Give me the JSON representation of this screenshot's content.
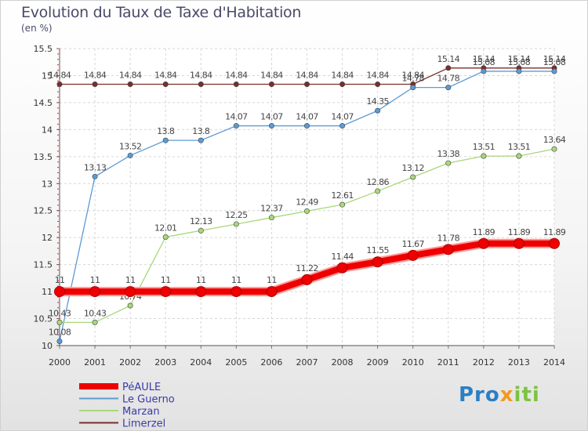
{
  "chart_data": {
    "type": "line",
    "title": "Evolution du Taux de Taxe d'Habitation",
    "unit_label": "(en %)",
    "x": [
      "2000",
      "2001",
      "2002",
      "2003",
      "2004",
      "2005",
      "2006",
      "2007",
      "2008",
      "2009",
      "2010",
      "2011",
      "2012",
      "2013",
      "2014"
    ],
    "ylim": [
      10,
      15.5
    ],
    "yticks": [
      "10",
      "10.5",
      "11",
      "11.5",
      "12",
      "12.5",
      "13",
      "13.5",
      "14",
      "14.5",
      "15",
      "15.5"
    ],
    "grid": true,
    "legend_position": "bottom-left",
    "series": [
      {
        "name": "Limerzel",
        "color": "#7b2d2d",
        "values": [
          14.84,
          14.84,
          14.84,
          14.84,
          14.84,
          14.84,
          14.84,
          14.84,
          14.84,
          14.84,
          14.84,
          15.14,
          15.14,
          15.14,
          15.14
        ],
        "labels": [
          "14.84",
          "14.84",
          "14.84",
          "14.84",
          "14.84",
          "14.84",
          "14.84",
          "14.84",
          "14.84",
          "14.84",
          "14.84",
          "15.14",
          "15.14",
          "15.14",
          "15.14"
        ]
      },
      {
        "name": "Le Guerno",
        "color": "#5b9bd5",
        "values": [
          10.08,
          13.13,
          13.52,
          13.8,
          13.8,
          14.07,
          14.07,
          14.07,
          14.07,
          14.35,
          14.78,
          14.78,
          15.08,
          15.08,
          15.08
        ],
        "labels": [
          "10.08",
          "13.13",
          "13.52",
          "13.8",
          "13.8",
          "14.07",
          "14.07",
          "14.07",
          "14.07",
          "14.35",
          "14.78",
          "14.78",
          "15.08",
          "15.08",
          "15.08"
        ]
      },
      {
        "name": "Marzan",
        "color": "#a8d878",
        "values": [
          10.43,
          10.43,
          10.74,
          12.01,
          12.13,
          12.25,
          12.37,
          12.49,
          12.61,
          12.86,
          13.12,
          13.38,
          13.51,
          13.51,
          13.64
        ],
        "labels": [
          "10.43",
          "10.43",
          "10.74",
          "12.01",
          "12.13",
          "12.25",
          "12.37",
          "12.49",
          "12.61",
          "12.86",
          "13.12",
          "13.38",
          "13.51",
          "13.51",
          "13.64"
        ]
      },
      {
        "name": "PéAULE",
        "color": "#ee0000",
        "values": [
          11,
          11,
          11,
          11,
          11,
          11,
          11,
          11.22,
          11.44,
          11.55,
          11.67,
          11.78,
          11.89,
          11.89,
          11.89
        ],
        "labels": [
          "11",
          "11",
          "11",
          "11",
          "11",
          "11",
          "11",
          "11.22",
          "11.44",
          "11.55",
          "11.67",
          "11.78",
          "11.89",
          "11.89",
          "11.89"
        ]
      }
    ],
    "legend": [
      "PéAULE",
      "Le Guerno",
      "Marzan",
      "Limerzel"
    ]
  },
  "brand": {
    "part1": "Pro",
    "part2": "x",
    "part3": "iti"
  }
}
